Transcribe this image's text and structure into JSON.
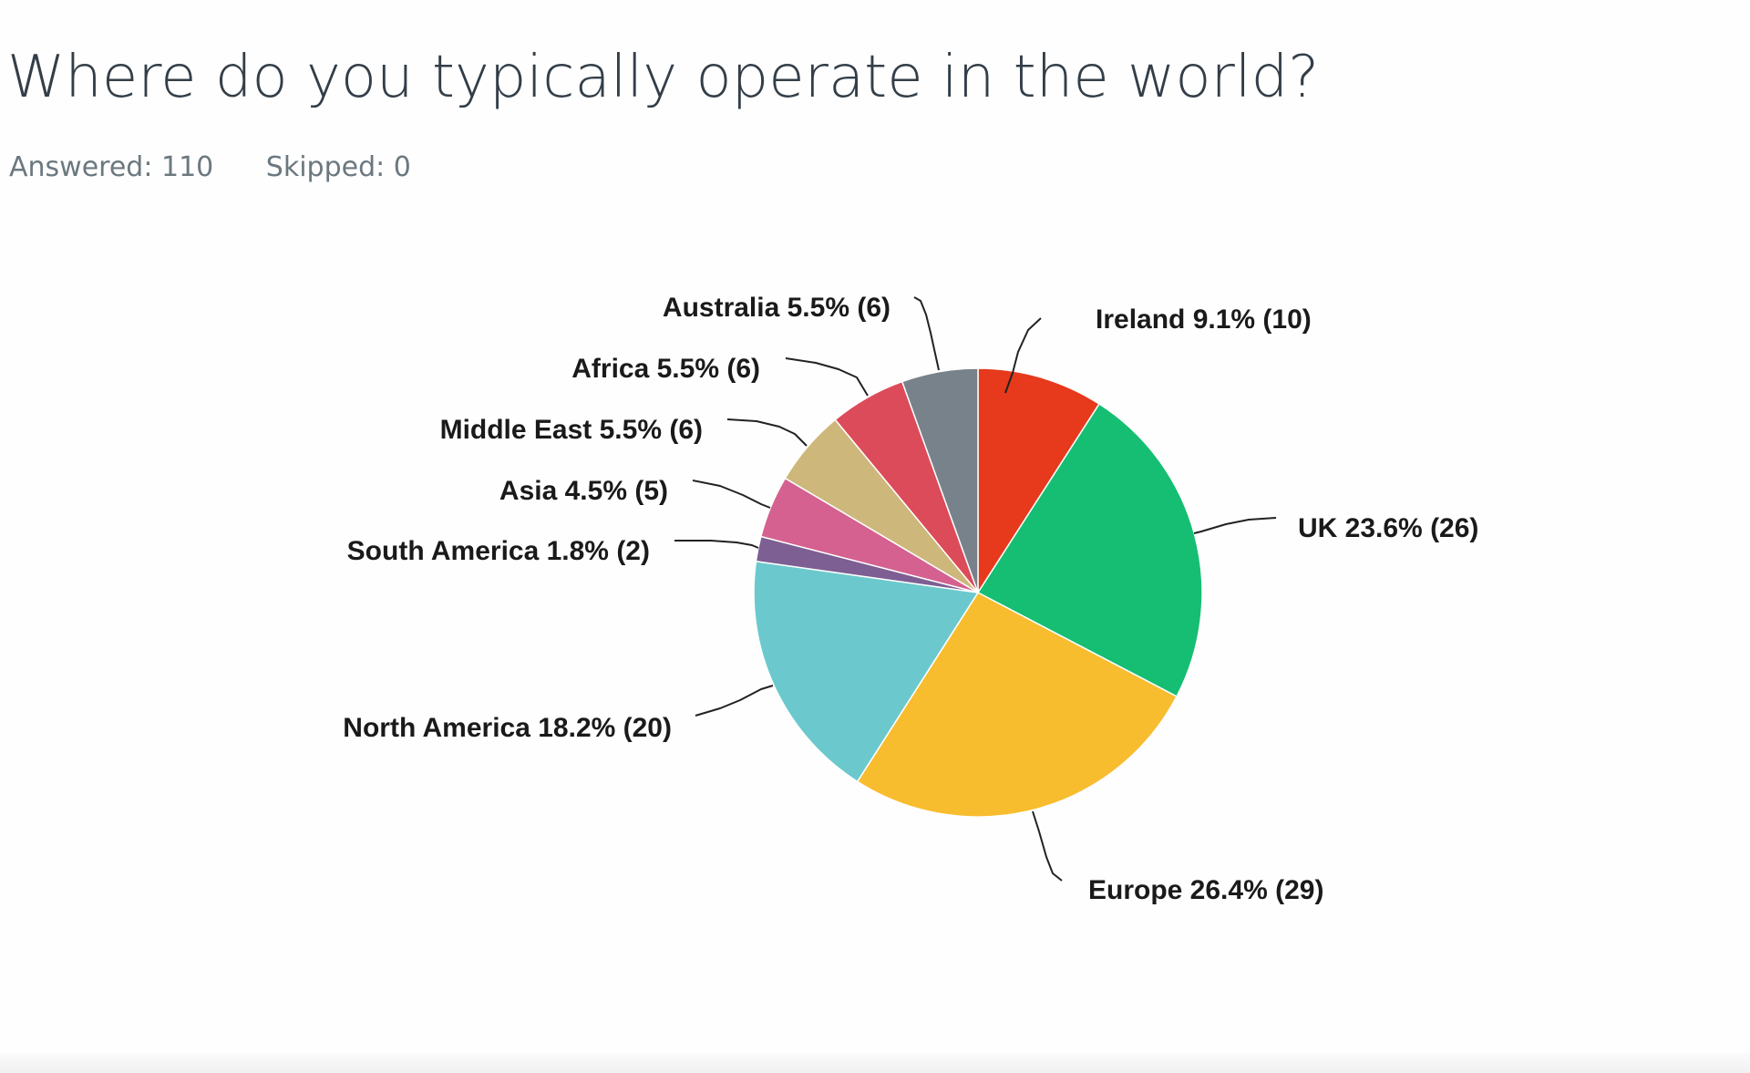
{
  "question": {
    "title": "Where do you typically operate in the world?",
    "answered_text": "Answered: 110",
    "skipped_text": "Skipped: 0"
  },
  "chart_data": {
    "type": "pie",
    "start_angle_deg": 0,
    "direction": "clockwise",
    "slices": [
      {
        "name": "Ireland",
        "percent": 9.1,
        "count": 10,
        "label": "Ireland 9.1% (10)",
        "color": "#e7391c"
      },
      {
        "name": "UK",
        "percent": 23.6,
        "count": 26,
        "label": "UK 23.6% (26)",
        "color": "#15be72"
      },
      {
        "name": "Europe",
        "percent": 26.4,
        "count": 29,
        "label": "Europe 26.4% (29)",
        "color": "#f8bc2f"
      },
      {
        "name": "North America",
        "percent": 18.2,
        "count": 20,
        "label": "North America 18.2% (20)",
        "color": "#6bc9cd"
      },
      {
        "name": "South America",
        "percent": 1.8,
        "count": 2,
        "label": "South America 1.8% (2)",
        "color": "#7d5f93"
      },
      {
        "name": "Asia",
        "percent": 4.5,
        "count": 5,
        "label": "Asia 4.5% (5)",
        "color": "#d4618f"
      },
      {
        "name": "Middle East",
        "percent": 5.5,
        "count": 6,
        "label": "Middle East 5.5% (6)",
        "color": "#cdb77b"
      },
      {
        "name": "Africa",
        "percent": 5.5,
        "count": 6,
        "label": "Africa 5.5% (6)",
        "color": "#dc4b5a"
      },
      {
        "name": "Australia",
        "percent": 5.5,
        "count": 6,
        "label": "Australia 5.5% (6)",
        "color": "#78828b"
      }
    ]
  }
}
